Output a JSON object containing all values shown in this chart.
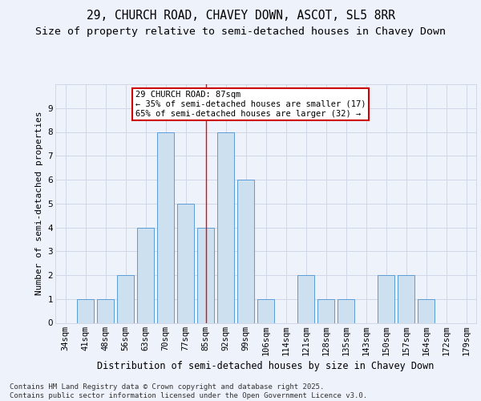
{
  "title1": "29, CHURCH ROAD, CHAVEY DOWN, ASCOT, SL5 8RR",
  "title2": "Size of property relative to semi-detached houses in Chavey Down",
  "xlabel": "Distribution of semi-detached houses by size in Chavey Down",
  "ylabel": "Number of semi-detached properties",
  "categories": [
    "34sqm",
    "41sqm",
    "48sqm",
    "56sqm",
    "63sqm",
    "70sqm",
    "77sqm",
    "85sqm",
    "92sqm",
    "99sqm",
    "106sqm",
    "114sqm",
    "121sqm",
    "128sqm",
    "135sqm",
    "143sqm",
    "150sqm",
    "157sqm",
    "164sqm",
    "172sqm",
    "179sqm"
  ],
  "values": [
    0,
    1,
    1,
    2,
    4,
    8,
    5,
    4,
    8,
    6,
    1,
    0,
    2,
    1,
    1,
    0,
    2,
    2,
    1,
    0,
    0
  ],
  "bar_color": "#cce0f0",
  "bar_edge_color": "#5b9bd5",
  "red_line_index": 7.0,
  "annotation_title": "29 CHURCH ROAD: 87sqm",
  "annotation_line1": "← 35% of semi-detached houses are smaller (17)",
  "annotation_line2": "65% of semi-detached houses are larger (32) →",
  "annotation_box_color": "#ffffff",
  "annotation_box_edge": "#cc0000",
  "ylim": [
    0,
    10
  ],
  "yticks": [
    0,
    1,
    2,
    3,
    4,
    5,
    6,
    7,
    8,
    9,
    10
  ],
  "grid_color": "#d0d8e8",
  "background_color": "#eef2fb",
  "footer": "Contains HM Land Registry data © Crown copyright and database right 2025.\nContains public sector information licensed under the Open Government Licence v3.0.",
  "title1_fontsize": 10.5,
  "title2_fontsize": 9.5,
  "xlabel_fontsize": 8.5,
  "ylabel_fontsize": 8,
  "tick_fontsize": 7.5,
  "annotation_fontsize": 7.5,
  "footer_fontsize": 6.5
}
